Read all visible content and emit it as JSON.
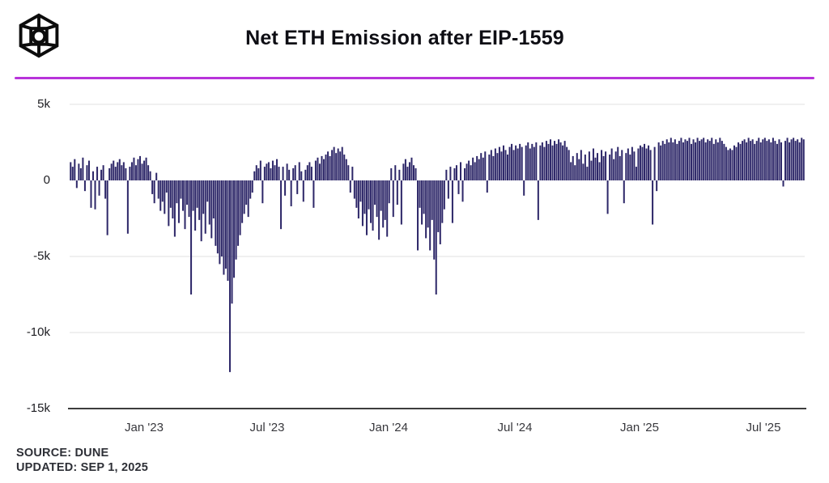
{
  "header": {
    "title": "Net ETH Emission after EIP-1559",
    "logo": "cube-wireframe-with-ring"
  },
  "footer": {
    "source": "SOURCE: DUNE",
    "updated": "UPDATED: SEP 1, 2025"
  },
  "colors": {
    "bar": "#2e2869",
    "divider_accent": "#b833da",
    "grid": "#f0f0f0",
    "axis": "#3d3d3d"
  },
  "chart_data": {
    "type": "bar",
    "title": "Net ETH Emission after EIP-1559",
    "xlabel": "",
    "ylabel": "",
    "ylim": [
      -15000,
      5000
    ],
    "grid": true,
    "legend": false,
    "y_tick_labels": [
      "5k",
      "0",
      "-5k",
      "-10k",
      "-15k"
    ],
    "y_tick_values": [
      5000,
      0,
      -5000,
      -10000,
      -15000
    ],
    "x_tick_labels": [
      "Jan '23",
      "Jul '23",
      "Jan '24",
      "Jul '24",
      "Jan '25",
      "Jul '25"
    ],
    "series_name": "Net ETH Emission (ETH/day, thousands)",
    "sample_interval_days": 3,
    "values_unit_k": true,
    "values": [
      1.2,
      0.9,
      1.4,
      -0.5,
      1.1,
      0.8,
      1.5,
      -0.7,
      1.0,
      1.3,
      -1.8,
      0.6,
      -1.9,
      0.9,
      -1.0,
      0.7,
      1.0,
      -1.2,
      -3.6,
      0.8,
      1.1,
      1.3,
      0.9,
      1.2,
      1.4,
      1.0,
      1.2,
      0.8,
      -3.5,
      0.9,
      1.2,
      1.5,
      1.0,
      1.4,
      1.6,
      1.1,
      1.3,
      1.5,
      1.0,
      0.6,
      -0.9,
      -1.5,
      0.5,
      -1.2,
      -2.0,
      -1.4,
      -2.2,
      -0.8,
      -3.0,
      -1.8,
      -2.5,
      -3.7,
      -1.5,
      -2.8,
      -1.2,
      -2.0,
      -3.2,
      -1.6,
      -2.4,
      -7.5,
      -2.0,
      -3.3,
      -1.8,
      -2.6,
      -4.0,
      -2.2,
      -3.5,
      -1.4,
      -2.9,
      -3.8,
      -2.5,
      -4.3,
      -4.8,
      -5.5,
      -5.0,
      -6.2,
      -5.8,
      -6.6,
      -12.6,
      -8.1,
      -6.4,
      -5.2,
      -4.3,
      -3.6,
      -2.8,
      -2.2,
      -1.6,
      -2.4,
      -1.2,
      -0.8,
      0.6,
      1.0,
      0.8,
      1.3,
      -1.5,
      0.9,
      1.1,
      1.2,
      0.8,
      1.3,
      1.0,
      1.4,
      0.9,
      -3.2,
      0.9,
      -1.0,
      1.1,
      0.7,
      -1.7,
      0.8,
      1.0,
      -0.9,
      1.2,
      0.6,
      -1.4,
      0.7,
      1.0,
      1.2,
      0.9,
      -1.8,
      1.3,
      1.5,
      1.1,
      1.6,
      1.4,
      1.7,
      1.9,
      1.6,
      2.0,
      2.2,
      1.8,
      2.1,
      1.9,
      2.2,
      1.7,
      1.4,
      1.0,
      -0.8,
      0.9,
      -1.2,
      -1.8,
      -2.5,
      -1.4,
      -3.0,
      -2.2,
      -3.6,
      -1.9,
      -2.8,
      -3.3,
      -1.6,
      -2.4,
      -3.9,
      -2.0,
      -3.1,
      -2.6,
      -3.7,
      -1.5,
      0.8,
      -2.4,
      1.0,
      -1.6,
      0.7,
      -2.9,
      1.1,
      1.4,
      0.9,
      1.2,
      1.5,
      1.0,
      0.8,
      -4.6,
      -1.8,
      -2.9,
      -2.2,
      -3.8,
      -3.1,
      -4.6,
      -2.6,
      -5.2,
      -7.5,
      -3.4,
      -4.2,
      -2.8,
      -1.9,
      0.7,
      -1.2,
      0.9,
      -2.8,
      0.8,
      1.0,
      -0.9,
      1.2,
      -1.4,
      0.8,
      1.1,
      1.3,
      1.0,
      1.5,
      1.2,
      1.6,
      1.4,
      1.8,
      1.5,
      1.9,
      -0.8,
      1.7,
      2.0,
      1.6,
      2.1,
      1.8,
      2.2,
      1.9,
      2.3,
      2.0,
      1.7,
      2.2,
      2.4,
      2.0,
      2.3,
      2.1,
      2.4,
      2.2,
      -1.0,
      2.3,
      2.5,
      2.1,
      2.4,
      2.2,
      2.5,
      -2.6,
      2.3,
      2.5,
      2.2,
      2.6,
      2.4,
      2.7,
      2.3,
      2.6,
      2.4,
      2.7,
      2.5,
      2.3,
      2.6,
      2.2,
      2.0,
      1.2,
      1.6,
      1.0,
      1.8,
      1.4,
      2.0,
      1.1,
      1.7,
      0.9,
      1.9,
      1.3,
      2.1,
      1.5,
      1.8,
      1.2,
      2.0,
      1.6,
      1.9,
      -2.2,
      1.7,
      2.1,
      1.4,
      1.9,
      2.2,
      1.6,
      2.0,
      -1.5,
      1.8,
      2.1,
      1.7,
      2.2,
      1.9,
      0.9,
      2.1,
      2.3,
      2.2,
      2.4,
      2.1,
      2.3,
      2.0,
      -2.9,
      2.2,
      -0.7,
      2.5,
      2.3,
      2.6,
      2.4,
      2.7,
      2.5,
      2.8,
      2.5,
      2.7,
      2.4,
      2.6,
      2.8,
      2.5,
      2.7,
      2.6,
      2.8,
      2.4,
      2.7,
      2.5,
      2.8,
      2.6,
      2.7,
      2.8,
      2.5,
      2.7,
      2.6,
      2.8,
      2.4,
      2.7,
      2.5,
      2.8,
      2.6,
      2.4,
      2.2,
      2.0,
      2.1,
      2.0,
      2.3,
      2.2,
      2.5,
      2.4,
      2.6,
      2.7,
      2.5,
      2.8,
      2.6,
      2.7,
      2.4,
      2.6,
      2.8,
      2.5,
      2.7,
      2.8,
      2.6,
      2.7,
      2.5,
      2.8,
      2.6,
      2.4,
      2.7,
      2.5,
      -0.4,
      2.6,
      2.8,
      2.5,
      2.7,
      2.8,
      2.6,
      2.7,
      2.5,
      2.8,
      2.7
    ]
  }
}
